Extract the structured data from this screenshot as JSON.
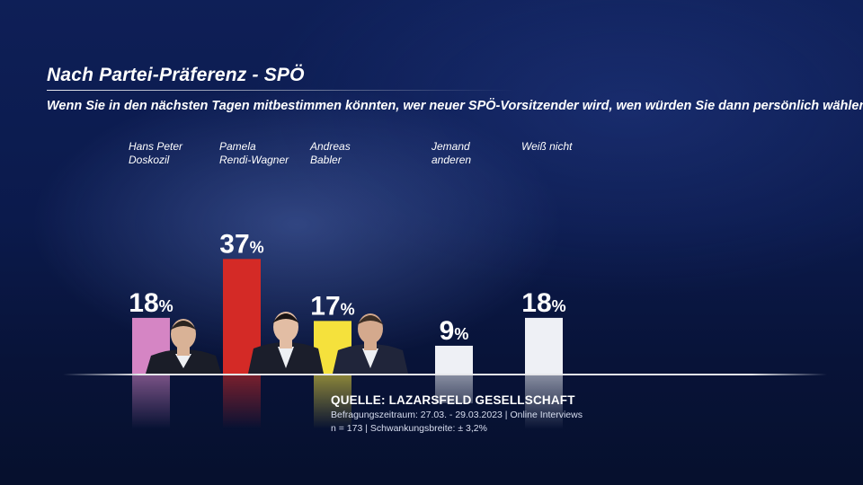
{
  "header": {
    "title": "Nach Partei-Präferenz - SPÖ",
    "question": "Wenn Sie in den nächsten Tagen mitbestimmen könnten, wer neuer SPÖ-Vorsitzender wird, wen würden Sie dann persönlich wählen?"
  },
  "chart_data": {
    "type": "bar",
    "categories": [
      "Hans Peter\nDoskozil",
      "Pamela\nRendi-Wagner",
      "Andreas\nBabler",
      "Jemand\nanderen",
      "Weiß nicht"
    ],
    "values": [
      18,
      37,
      17,
      9,
      18
    ],
    "value_suffix": "%",
    "colors": [
      "#d585c4",
      "#d42a26",
      "#f5e13c",
      "#eef0f5",
      "#eef0f5"
    ],
    "title": "Nach Partei-Präferenz - SPÖ",
    "xlabel": "",
    "ylabel": "",
    "ylim": [
      0,
      40
    ],
    "grid": false
  },
  "footer": {
    "source": "QUELLE:  LAZARSFELD GESELLSCHAFT",
    "period": "Befragungszeitraum: 27.03. - 29.03.2023 | Online Interviews",
    "sample": "n = 173 |  Schwankungsbreite: ± 3,2%"
  },
  "photos": [
    {
      "icon": "person-photo-icon",
      "skin": "#d9b296",
      "hair": "#2a2420",
      "suit": "#1a1d28"
    },
    {
      "icon": "person-photo-icon",
      "skin": "#e2bda4",
      "hair": "#1a1414",
      "suit": "#1b1e2b"
    },
    {
      "icon": "person-photo-icon",
      "skin": "#d4a98d",
      "hair": "#3b2e25",
      "suit": "#20253a"
    }
  ]
}
